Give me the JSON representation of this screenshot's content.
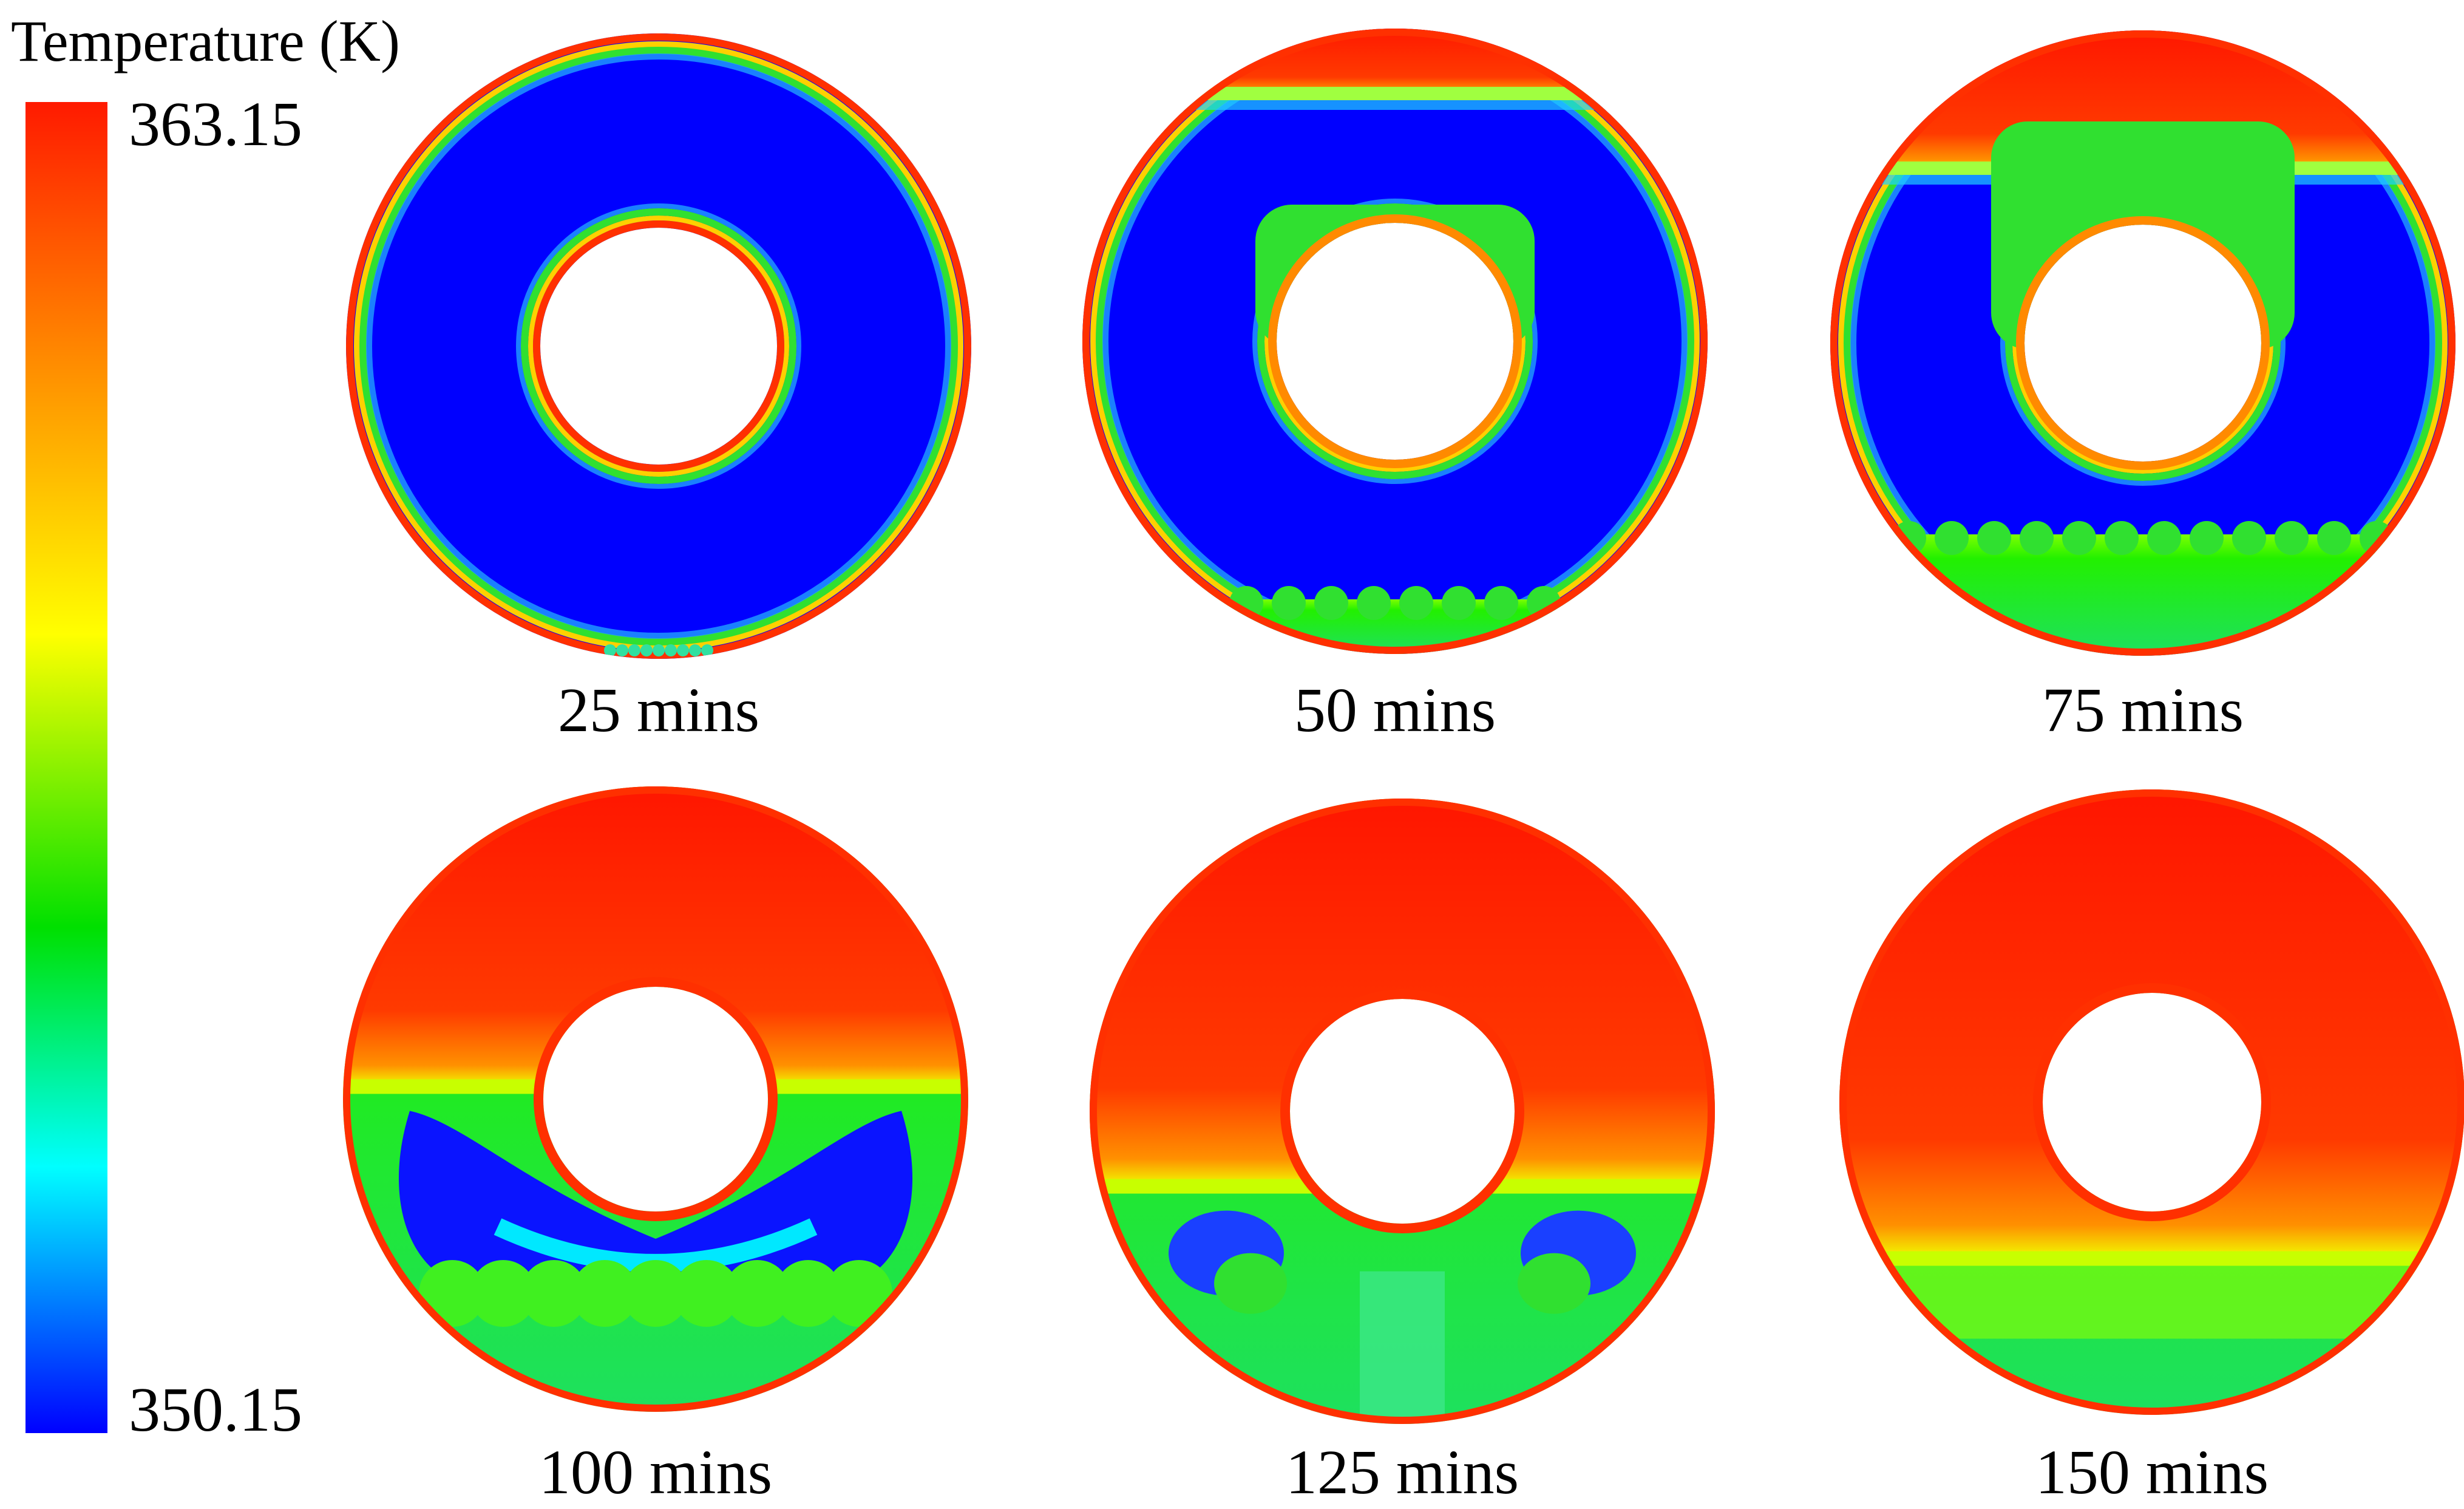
{
  "colorbar": {
    "title": "Temperature (K)",
    "max_label": "363.15",
    "min_label": "350.15",
    "colormap_stops": [
      "#ff0000",
      "#ff8800",
      "#ffff00",
      "#00e000",
      "#00ffff",
      "#0000ff"
    ]
  },
  "panels": [
    {
      "caption": "25 mins",
      "melt_front": 0.0,
      "state": "early"
    },
    {
      "caption": "50 mins",
      "melt_front": 0.05,
      "state": "early-plumes"
    },
    {
      "caption": "75 mins",
      "melt_front": 0.2,
      "state": "mid"
    },
    {
      "caption": "100 mins",
      "melt_front": 0.48,
      "state": "half"
    },
    {
      "caption": "125 mins",
      "melt_front": 0.62,
      "state": "late"
    },
    {
      "caption": "150 mins",
      "melt_front": 0.75,
      "state": "nearly-melted"
    }
  ]
}
